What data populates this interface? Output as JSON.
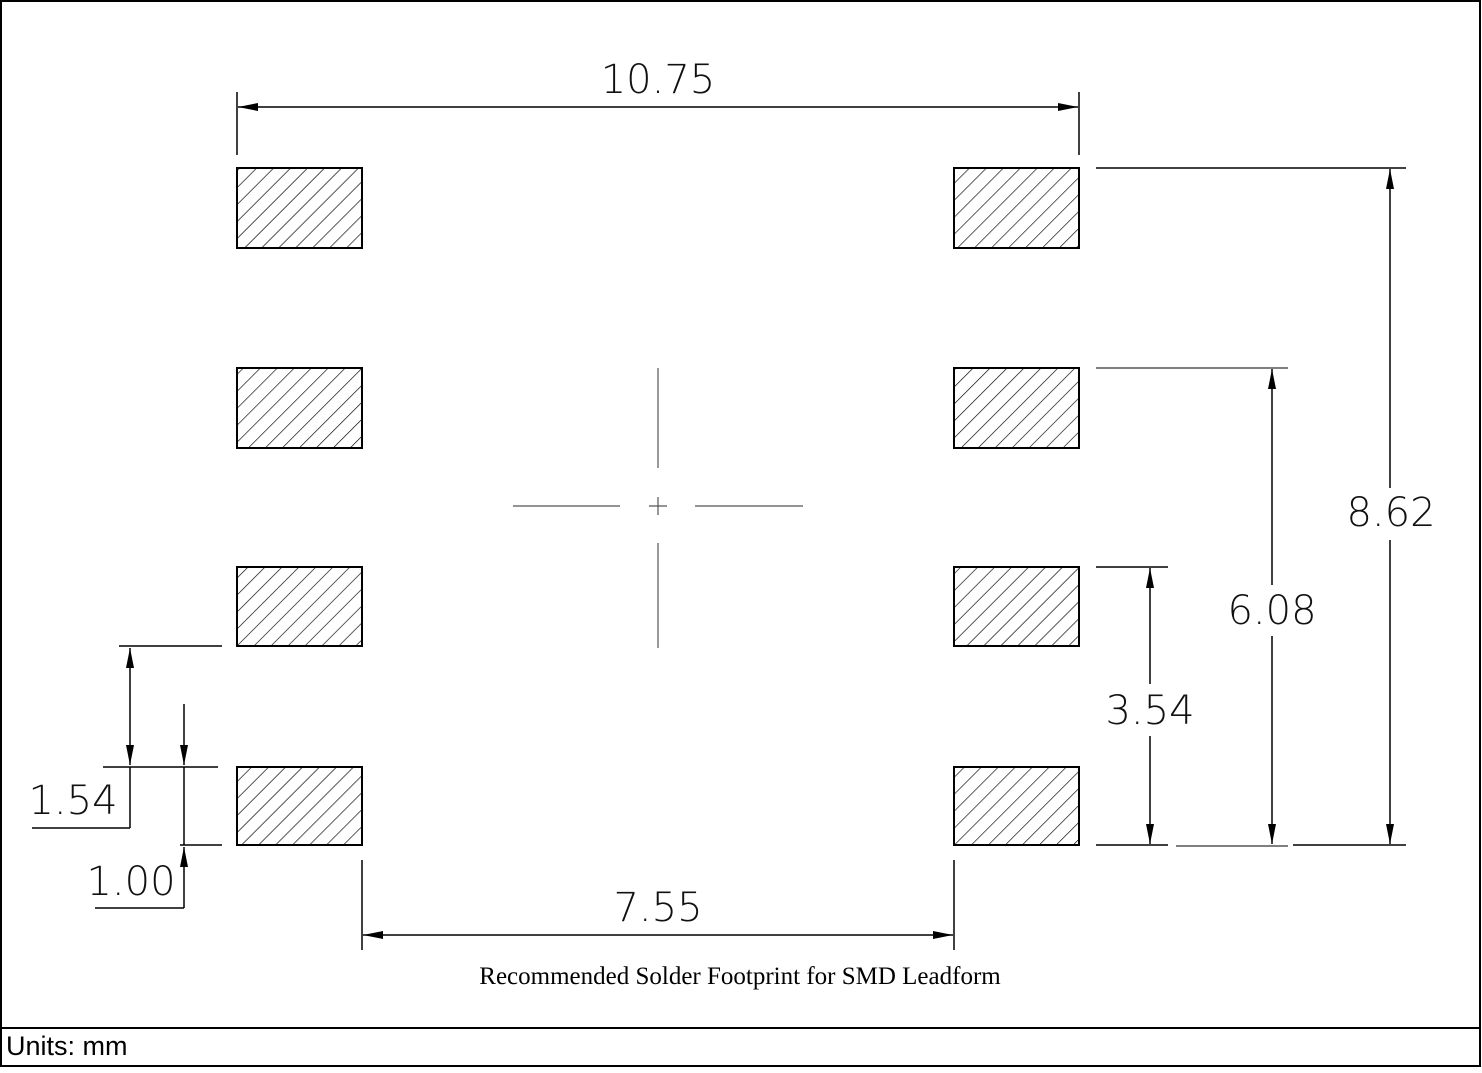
{
  "diagram": {
    "caption": "Recommended Solder Footprint for SMD Leadform",
    "units_label": "Units: mm",
    "dimensions": {
      "overall_width": "10.75",
      "pad_gap": "7.55",
      "pitch_total": "8.62",
      "pitch_6": "6.08",
      "pitch_3": "3.54",
      "pitch": "1.54",
      "pad_height": "1.00"
    },
    "colors": {
      "line": "#000000",
      "hatch": "#000000",
      "centerline": "#555555"
    }
  }
}
